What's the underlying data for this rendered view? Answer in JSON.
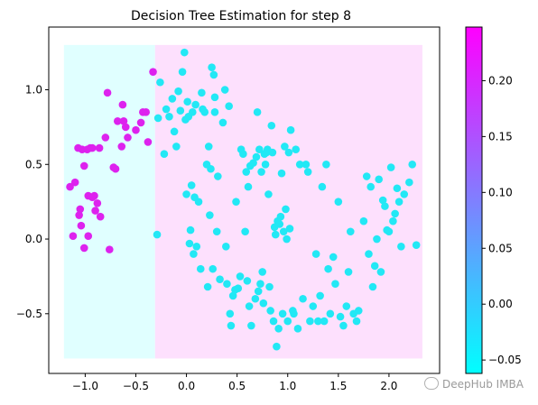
{
  "chart_data": {
    "type": "scatter",
    "title": "Decision Tree Estimation for step 8",
    "xlabel": "",
    "ylabel": "",
    "xlim": [
      -1.36,
      2.5
    ],
    "ylim": [
      -0.9,
      1.42
    ],
    "x_ticks": [
      -1.0,
      -0.5,
      0.0,
      0.5,
      1.0,
      1.5,
      2.0
    ],
    "x_tick_labels": [
      "−1.0",
      "−0.5",
      "0.0",
      "0.5",
      "1.0",
      "1.5",
      "2.0"
    ],
    "y_ticks": [
      -0.5,
      0.0,
      0.5,
      1.0
    ],
    "y_tick_labels": [
      "−0.5",
      "0.0",
      "0.5",
      "1.0"
    ],
    "grid": false,
    "regions": [
      {
        "x0": -1.21,
        "x1": -0.31,
        "y0": -0.8,
        "y1": 1.3,
        "value": -0.06,
        "color": "#e0ffff"
      },
      {
        "x0": -0.31,
        "x1": 2.33,
        "y0": -0.8,
        "y1": 1.3,
        "value": 0.246,
        "color": "#fde0fd"
      }
    ],
    "colorbar": {
      "cmap": "cool",
      "colors": [
        "#00ffff",
        "#ff00ff"
      ],
      "min": -0.062,
      "max": 0.248,
      "ticks": [
        -0.05,
        0.0,
        0.05,
        0.1,
        0.15,
        0.2
      ],
      "tick_labels": [
        "−0.05",
        "0.00",
        "0.05",
        "0.10",
        "0.15",
        "0.20"
      ]
    },
    "series": [
      {
        "color": "#dd22ee",
        "value": 0.246,
        "points": [
          [
            -1.15,
            0.35
          ],
          [
            -1.12,
            0.02
          ],
          [
            -1.1,
            0.38
          ],
          [
            -1.07,
            0.61
          ],
          [
            -1.06,
            0.16
          ],
          [
            -1.05,
            0.2
          ],
          [
            -1.04,
            0.09
          ],
          [
            -1.03,
            0.6
          ],
          [
            -1.01,
            0.49
          ],
          [
            -1.01,
            -0.06
          ],
          [
            -0.98,
            0.6
          ],
          [
            -0.97,
            0.29
          ],
          [
            -0.97,
            0.02
          ],
          [
            -0.95,
            0.61
          ],
          [
            -0.93,
            0.61
          ],
          [
            -0.93,
            0.28
          ],
          [
            -0.91,
            0.29
          ],
          [
            -0.9,
            0.19
          ],
          [
            -0.88,
            0.24
          ],
          [
            -0.86,
            0.61
          ],
          [
            -0.85,
            0.15
          ],
          [
            -0.8,
            0.68
          ],
          [
            -0.78,
            0.98
          ],
          [
            -0.76,
            -0.07
          ],
          [
            -0.72,
            0.48
          ],
          [
            -0.7,
            0.47
          ],
          [
            -0.68,
            0.79
          ],
          [
            -0.64,
            0.62
          ],
          [
            -0.63,
            0.9
          ],
          [
            -0.62,
            0.79
          ],
          [
            -0.6,
            0.75
          ],
          [
            -0.58,
            0.68
          ],
          [
            -0.5,
            0.73
          ],
          [
            -0.45,
            0.78
          ],
          [
            -0.43,
            0.85
          ],
          [
            -0.4,
            0.85
          ],
          [
            -0.38,
            0.65
          ],
          [
            -0.33,
            1.12
          ]
        ]
      },
      {
        "color": "#22e8f5",
        "value": -0.06,
        "points": [
          [
            -0.28,
            0.81
          ],
          [
            -0.29,
            0.03
          ],
          [
            -0.26,
            1.05
          ],
          [
            -0.22,
            0.57
          ],
          [
            -0.2,
            0.87
          ],
          [
            -0.17,
            0.82
          ],
          [
            -0.14,
            0.94
          ],
          [
            -0.12,
            0.72
          ],
          [
            -0.1,
            0.62
          ],
          [
            -0.08,
            0.99
          ],
          [
            -0.06,
            0.86
          ],
          [
            -0.04,
            1.12
          ],
          [
            -0.02,
            1.25
          ],
          [
            -0.01,
            0.8
          ],
          [
            0.0,
            0.3
          ],
          [
            0.01,
            0.92
          ],
          [
            0.02,
            0.82
          ],
          [
            0.03,
            -0.03
          ],
          [
            0.04,
            0.06
          ],
          [
            0.05,
            0.36
          ],
          [
            0.06,
            0.85
          ],
          [
            0.07,
            -0.1
          ],
          [
            0.08,
            0.28
          ],
          [
            0.09,
            0.9
          ],
          [
            0.1,
            -0.05
          ],
          [
            0.12,
            0.25
          ],
          [
            0.14,
            -0.2
          ],
          [
            0.15,
            0.98
          ],
          [
            0.16,
            0.87
          ],
          [
            0.18,
            0.85
          ],
          [
            0.2,
            0.5
          ],
          [
            0.21,
            -0.32
          ],
          [
            0.22,
            0.62
          ],
          [
            0.23,
            0.16
          ],
          [
            0.24,
            0.47
          ],
          [
            0.25,
            1.15
          ],
          [
            0.26,
            -0.2
          ],
          [
            0.27,
            1.1
          ],
          [
            0.28,
            0.95
          ],
          [
            0.28,
            0.85
          ],
          [
            0.3,
            0.05
          ],
          [
            0.31,
            0.42
          ],
          [
            0.33,
            -0.27
          ],
          [
            0.36,
            0.78
          ],
          [
            0.38,
            1.0
          ],
          [
            0.39,
            -0.05
          ],
          [
            0.4,
            -0.3
          ],
          [
            0.42,
            0.89
          ],
          [
            0.43,
            -0.5
          ],
          [
            0.44,
            -0.58
          ],
          [
            0.46,
            -0.38
          ],
          [
            0.48,
            -0.34
          ],
          [
            0.49,
            0.25
          ],
          [
            0.51,
            -0.33
          ],
          [
            0.53,
            -0.25
          ],
          [
            0.54,
            0.6
          ],
          [
            0.56,
            0.57
          ],
          [
            0.58,
            0.05
          ],
          [
            0.59,
            0.45
          ],
          [
            0.6,
            -0.28
          ],
          [
            0.61,
            0.35
          ],
          [
            0.62,
            -0.45
          ],
          [
            0.63,
            0.49
          ],
          [
            0.64,
            -0.58
          ],
          [
            0.66,
            0.51
          ],
          [
            0.68,
            -0.4
          ],
          [
            0.69,
            0.55
          ],
          [
            0.7,
            0.85
          ],
          [
            0.71,
            -0.35
          ],
          [
            0.72,
            0.6
          ],
          [
            0.73,
            -0.3
          ],
          [
            0.74,
            0.45
          ],
          [
            0.75,
            -0.22
          ],
          [
            0.76,
            -0.43
          ],
          [
            0.77,
            0.57
          ],
          [
            0.78,
            0.5
          ],
          [
            0.79,
            0.58
          ],
          [
            0.8,
            0.6
          ],
          [
            0.81,
            0.3
          ],
          [
            0.82,
            -0.32
          ],
          [
            0.83,
            -0.48
          ],
          [
            0.84,
            0.76
          ],
          [
            0.85,
            0.58
          ],
          [
            0.86,
            -0.55
          ],
          [
            0.87,
            0.08
          ],
          [
            0.88,
            0.03
          ],
          [
            0.89,
            -0.72
          ],
          [
            0.9,
            0.12
          ],
          [
            0.91,
            -0.6
          ],
          [
            0.92,
            0.1
          ],
          [
            0.93,
            0.15
          ],
          [
            0.94,
            0.44
          ],
          [
            0.95,
            -0.5
          ],
          [
            0.96,
            0.05
          ],
          [
            0.97,
            0.62
          ],
          [
            0.98,
            0.2
          ],
          [
            0.99,
            0.0
          ],
          [
            1.0,
            -0.55
          ],
          [
            1.01,
            0.58
          ],
          [
            1.02,
            0.07
          ],
          [
            1.03,
            0.73
          ],
          [
            1.05,
            -0.48
          ],
          [
            1.06,
            -0.5
          ],
          [
            1.08,
            0.6
          ],
          [
            1.1,
            -0.6
          ],
          [
            1.12,
            0.5
          ],
          [
            1.15,
            -0.4
          ],
          [
            1.18,
            0.5
          ],
          [
            1.2,
            0.45
          ],
          [
            1.22,
            -0.55
          ],
          [
            1.25,
            -0.45
          ],
          [
            1.28,
            -0.1
          ],
          [
            1.3,
            -0.55
          ],
          [
            1.32,
            -0.38
          ],
          [
            1.34,
            0.35
          ],
          [
            1.36,
            -0.55
          ],
          [
            1.38,
            0.5
          ],
          [
            1.4,
            -0.2
          ],
          [
            1.42,
            -0.5
          ],
          [
            1.45,
            -0.12
          ],
          [
            1.47,
            -0.3
          ],
          [
            1.5,
            0.25
          ],
          [
            1.52,
            -0.52
          ],
          [
            1.55,
            -0.58
          ],
          [
            1.58,
            -0.45
          ],
          [
            1.6,
            -0.22
          ],
          [
            1.62,
            0.05
          ],
          [
            1.65,
            -0.5
          ],
          [
            1.68,
            -0.55
          ],
          [
            1.7,
            -0.48
          ],
          [
            1.75,
            0.12
          ],
          [
            1.78,
            0.42
          ],
          [
            1.8,
            -0.1
          ],
          [
            1.82,
            0.35
          ],
          [
            1.84,
            -0.32
          ],
          [
            1.86,
            -0.18
          ],
          [
            1.88,
            0.0
          ],
          [
            1.9,
            0.4
          ],
          [
            1.92,
            -0.22
          ],
          [
            1.94,
            0.26
          ],
          [
            1.96,
            0.22
          ],
          [
            1.98,
            0.06
          ],
          [
            2.0,
            0.05
          ],
          [
            2.02,
            0.48
          ],
          [
            2.04,
            0.12
          ],
          [
            2.06,
            0.17
          ],
          [
            2.08,
            0.34
          ],
          [
            2.1,
            0.25
          ],
          [
            2.12,
            -0.05
          ],
          [
            2.15,
            0.3
          ],
          [
            2.2,
            0.38
          ],
          [
            2.23,
            0.5
          ],
          [
            2.27,
            -0.04
          ]
        ]
      }
    ]
  },
  "watermark": "DeepHub IMBA"
}
